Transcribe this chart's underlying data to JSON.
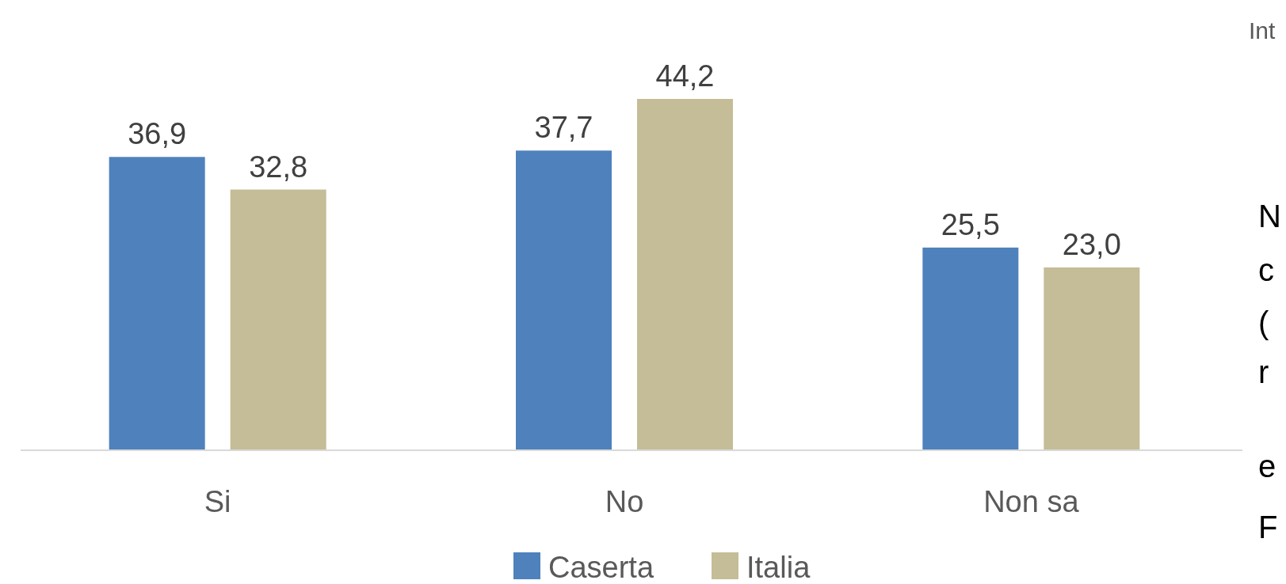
{
  "chart_data": {
    "type": "bar",
    "categories": [
      "Si",
      "No",
      "Non sa"
    ],
    "series": [
      {
        "name": "Caserta",
        "color": "#4f81bd",
        "values": [
          36.9,
          37.7,
          25.5
        ],
        "value_labels": [
          "36,9",
          "37,7",
          "25,5"
        ]
      },
      {
        "name": "Italia",
        "color": "#c4bd97",
        "values": [
          32.8,
          44.2,
          23.0
        ],
        "value_labels": [
          "32,8",
          "44,2",
          "23,0"
        ]
      }
    ],
    "legend": "bottom",
    "annotations": [
      "Int",
      "N",
      "c",
      "(",
      "r",
      "e",
      "F"
    ]
  }
}
